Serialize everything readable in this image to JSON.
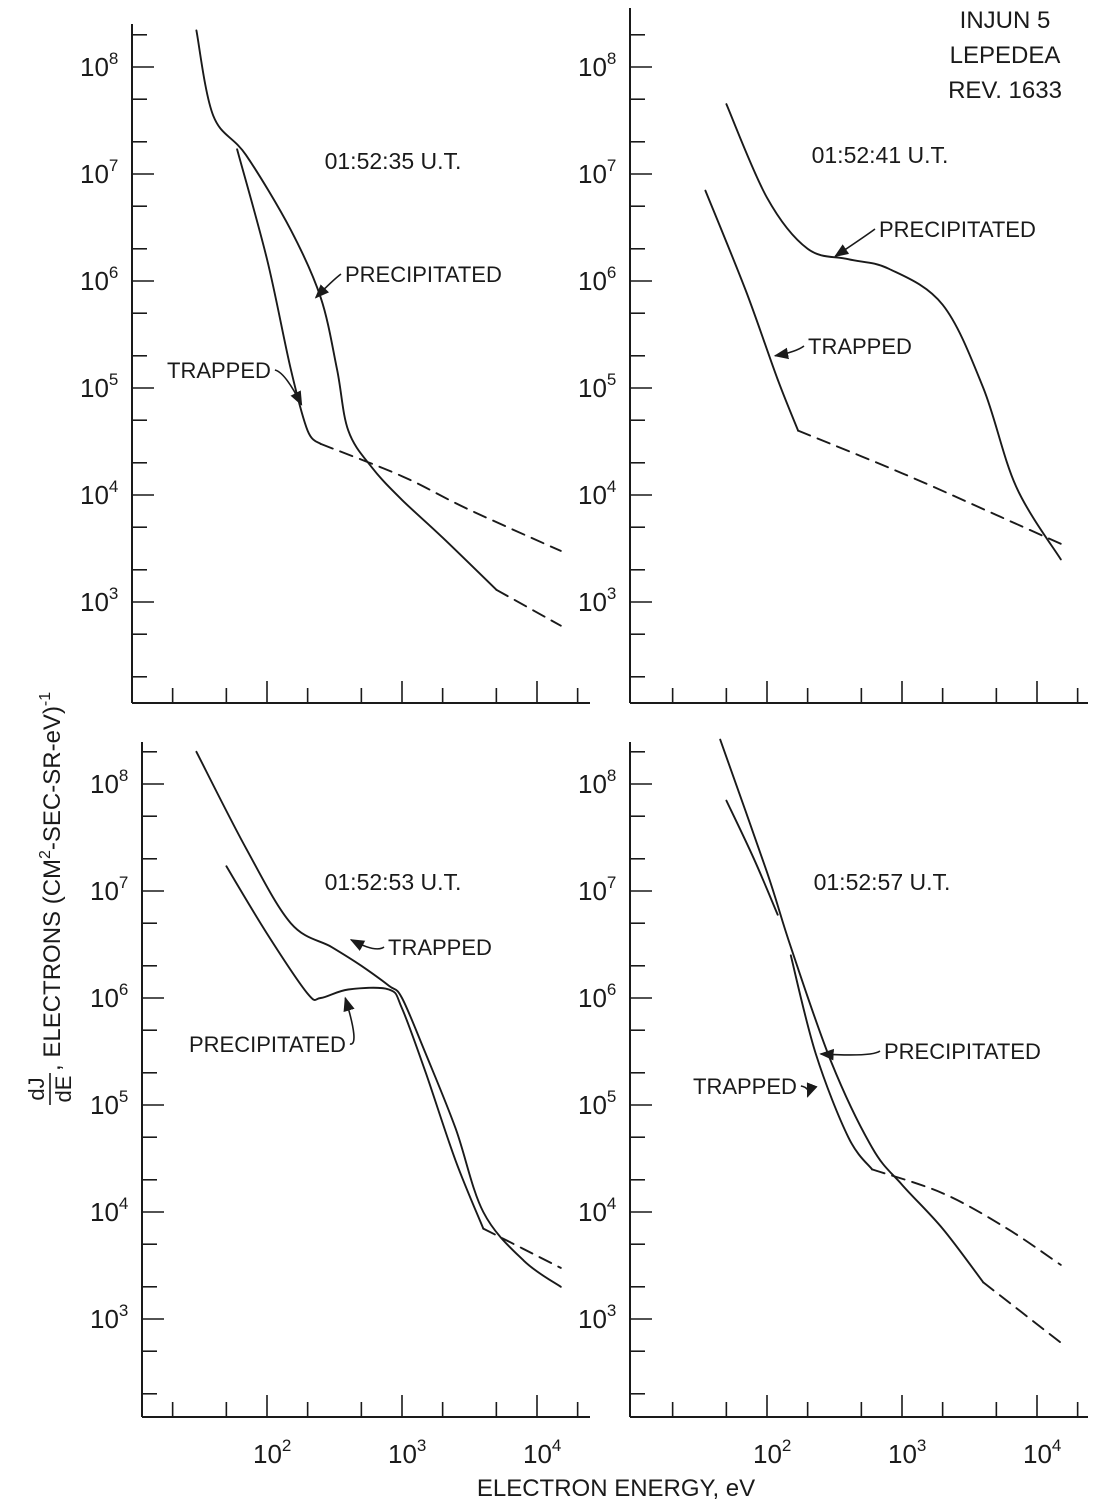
{
  "figure": {
    "id_lines": [
      "INJUN 5",
      "LEPEDEA",
      "REV. 1633"
    ],
    "xlabel": "ELECTRON ENERGY, eV",
    "ylabel_fraction_num": "dJ",
    "ylabel_fraction_den": "dE",
    "ylabel_text_a": ", ELECTRONS (CM",
    "ylabel_sup_a": "2",
    "ylabel_text_b": "-SEC-SR-eV)",
    "ylabel_sup_b": "-1",
    "tick_base": "10",
    "x_tick_exponents": [
      "2",
      "3",
      "4"
    ],
    "y_tick_exponents": [
      "3",
      "4",
      "5",
      "6",
      "7",
      "8"
    ]
  },
  "chart_data": [
    {
      "type": "line",
      "title": "01:52:35 U.T.",
      "x_scale": "log",
      "y_scale": "log",
      "xlim": [
        10,
        25000
      ],
      "ylim": [
        100,
        300000000
      ],
      "x_ticks": [
        100,
        1000,
        10000
      ],
      "y_ticks": [
        1000,
        10000,
        100000,
        1000000,
        10000000,
        100000000
      ],
      "series": [
        {
          "name": "PRECIPITATED",
          "style": "solid",
          "points": [
            [
              30,
              220000000
            ],
            [
              40,
              35000000
            ],
            [
              70,
              15000000
            ],
            [
              150,
              3000000
            ],
            [
              250,
              700000
            ],
            [
              330,
              150000
            ],
            [
              400,
              40000
            ],
            [
              600,
              18000
            ],
            [
              1000,
              9000
            ],
            [
              2000,
              4000
            ],
            [
              5000,
              1300
            ]
          ]
        },
        {
          "name": "",
          "style": "dashed",
          "points": [
            [
              5000,
              1300
            ],
            [
              15000,
              600
            ]
          ]
        },
        {
          "name": "TRAPPED",
          "style": "solid",
          "points": [
            [
              60,
              17000000
            ],
            [
              100,
              1600000
            ],
            [
              150,
              150000
            ],
            [
              200,
              40000
            ],
            [
              250,
              30000
            ]
          ]
        },
        {
          "name": "",
          "style": "dashed",
          "points": [
            [
              250,
              30000
            ],
            [
              1000,
              15000
            ],
            [
              3000,
              7500
            ],
            [
              15000,
              3000
            ]
          ]
        }
      ],
      "annotations": [
        {
          "text": "PRECIPITATED",
          "target": [
            230,
            700000
          ]
        },
        {
          "text": "TRAPPED",
          "target": [
            180,
            70000
          ]
        }
      ]
    },
    {
      "type": "line",
      "title": "01:52:41 U.T.",
      "x_scale": "log",
      "y_scale": "log",
      "xlim": [
        10,
        25000
      ],
      "ylim": [
        100,
        300000000
      ],
      "x_ticks": [
        100,
        1000,
        10000
      ],
      "y_ticks": [
        1000,
        10000,
        100000,
        1000000,
        10000000,
        100000000
      ],
      "series": [
        {
          "name": "PRECIPITATED",
          "style": "solid",
          "points": [
            [
              50,
              45000000
            ],
            [
              100,
              6000000
            ],
            [
              200,
              2000000
            ],
            [
              400,
              1600000
            ],
            [
              800,
              1300000
            ],
            [
              2000,
              600000
            ],
            [
              4000,
              100000
            ],
            [
              7000,
              12000
            ],
            [
              15000,
              2500
            ]
          ]
        },
        {
          "name": "TRAPPED",
          "style": "solid",
          "points": [
            [
              35,
              7000000
            ],
            [
              70,
              800000
            ],
            [
              120,
              120000
            ],
            [
              170,
              40000
            ]
          ]
        },
        {
          "name": "",
          "style": "dashed",
          "points": [
            [
              170,
              40000
            ],
            [
              1000,
              16000
            ],
            [
              5000,
              6500
            ],
            [
              15000,
              3500
            ]
          ]
        }
      ],
      "annotations": [
        {
          "text": "PRECIPITATED",
          "target": [
            320,
            1700000
          ]
        },
        {
          "text": "TRAPPED",
          "target": [
            115,
            200000
          ]
        }
      ]
    },
    {
      "type": "line",
      "title": "01:52:53 U.T.",
      "x_scale": "log",
      "y_scale": "log",
      "xlim": [
        10,
        25000
      ],
      "ylim": [
        100,
        300000000
      ],
      "x_ticks": [
        100,
        1000,
        10000
      ],
      "y_ticks": [
        1000,
        10000,
        100000,
        1000000,
        10000000,
        100000000
      ],
      "series": [
        {
          "name": "TRAPPED",
          "style": "solid",
          "points": [
            [
              30,
              200000000
            ],
            [
              70,
              25000000
            ],
            [
              150,
              5000000
            ],
            [
              300,
              3000000
            ],
            [
              500,
              2000000
            ],
            [
              800,
              1300000
            ],
            [
              1000,
              1000000
            ],
            [
              1500,
              300000
            ],
            [
              2500,
              60000
            ],
            [
              4000,
              10000
            ],
            [
              8000,
              3500
            ],
            [
              15000,
              2000
            ]
          ]
        },
        {
          "name": "PRECIPITATED",
          "style": "solid",
          "points": [
            [
              50,
              17000000
            ],
            [
              100,
              4000000
            ],
            [
              200,
              1100000
            ],
            [
              250,
              1000000
            ],
            [
              400,
              1200000
            ],
            [
              800,
              1200000
            ],
            [
              1000,
              800000
            ],
            [
              1500,
              200000
            ],
            [
              2500,
              30000
            ],
            [
              4000,
              7000
            ]
          ]
        },
        {
          "name": "",
          "style": "dashed",
          "points": [
            [
              4000,
              7000
            ],
            [
              15000,
              3000
            ]
          ]
        }
      ],
      "annotations": [
        {
          "text": "TRAPPED",
          "target": [
            420,
            3500000
          ]
        },
        {
          "text": "PRECIPITATED",
          "target": [
            380,
            1000000
          ]
        }
      ]
    },
    {
      "type": "line",
      "title": "01:52:57 U.T.",
      "x_scale": "log",
      "y_scale": "log",
      "xlim": [
        10,
        25000
      ],
      "ylim": [
        100,
        300000000
      ],
      "x_ticks": [
        100,
        1000,
        10000
      ],
      "y_ticks": [
        1000,
        10000,
        100000,
        1000000,
        10000000,
        100000000
      ],
      "series": [
        {
          "name": "PRECIPITATED",
          "style": "solid",
          "points": [
            [
              45,
              260000000
            ],
            [
              100,
              15000000
            ],
            [
              150,
              3000000
            ],
            [
              300,
              250000
            ],
            [
              600,
              40000
            ],
            [
              1000,
              18000
            ],
            [
              2000,
              7000
            ],
            [
              4000,
              2200
            ]
          ]
        },
        {
          "name": "",
          "style": "dashed",
          "points": [
            [
              4000,
              2200
            ],
            [
              15000,
              600
            ]
          ]
        },
        {
          "name": "TRAPPED",
          "style": "solid",
          "points": [
            [
              50,
              70000000
            ],
            [
              80,
              20000000
            ],
            [
              120,
              6000000
            ]
          ]
        },
        {
          "name": "TRAPPED",
          "style": "solid",
          "points": [
            [
              150,
              2500000
            ],
            [
              230,
              300000
            ],
            [
              400,
              50000
            ],
            [
              600,
              25000
            ]
          ]
        },
        {
          "name": "",
          "style": "dashed",
          "points": [
            [
              600,
              25000
            ],
            [
              2000,
              15000
            ],
            [
              6000,
              7000
            ],
            [
              15000,
              3200
            ]
          ]
        }
      ],
      "annotations": [
        {
          "text": "PRECIPITATED",
          "target": [
            250,
            300000
          ]
        },
        {
          "text": "TRAPPED",
          "target": [
            200,
            120000
          ]
        }
      ]
    }
  ]
}
